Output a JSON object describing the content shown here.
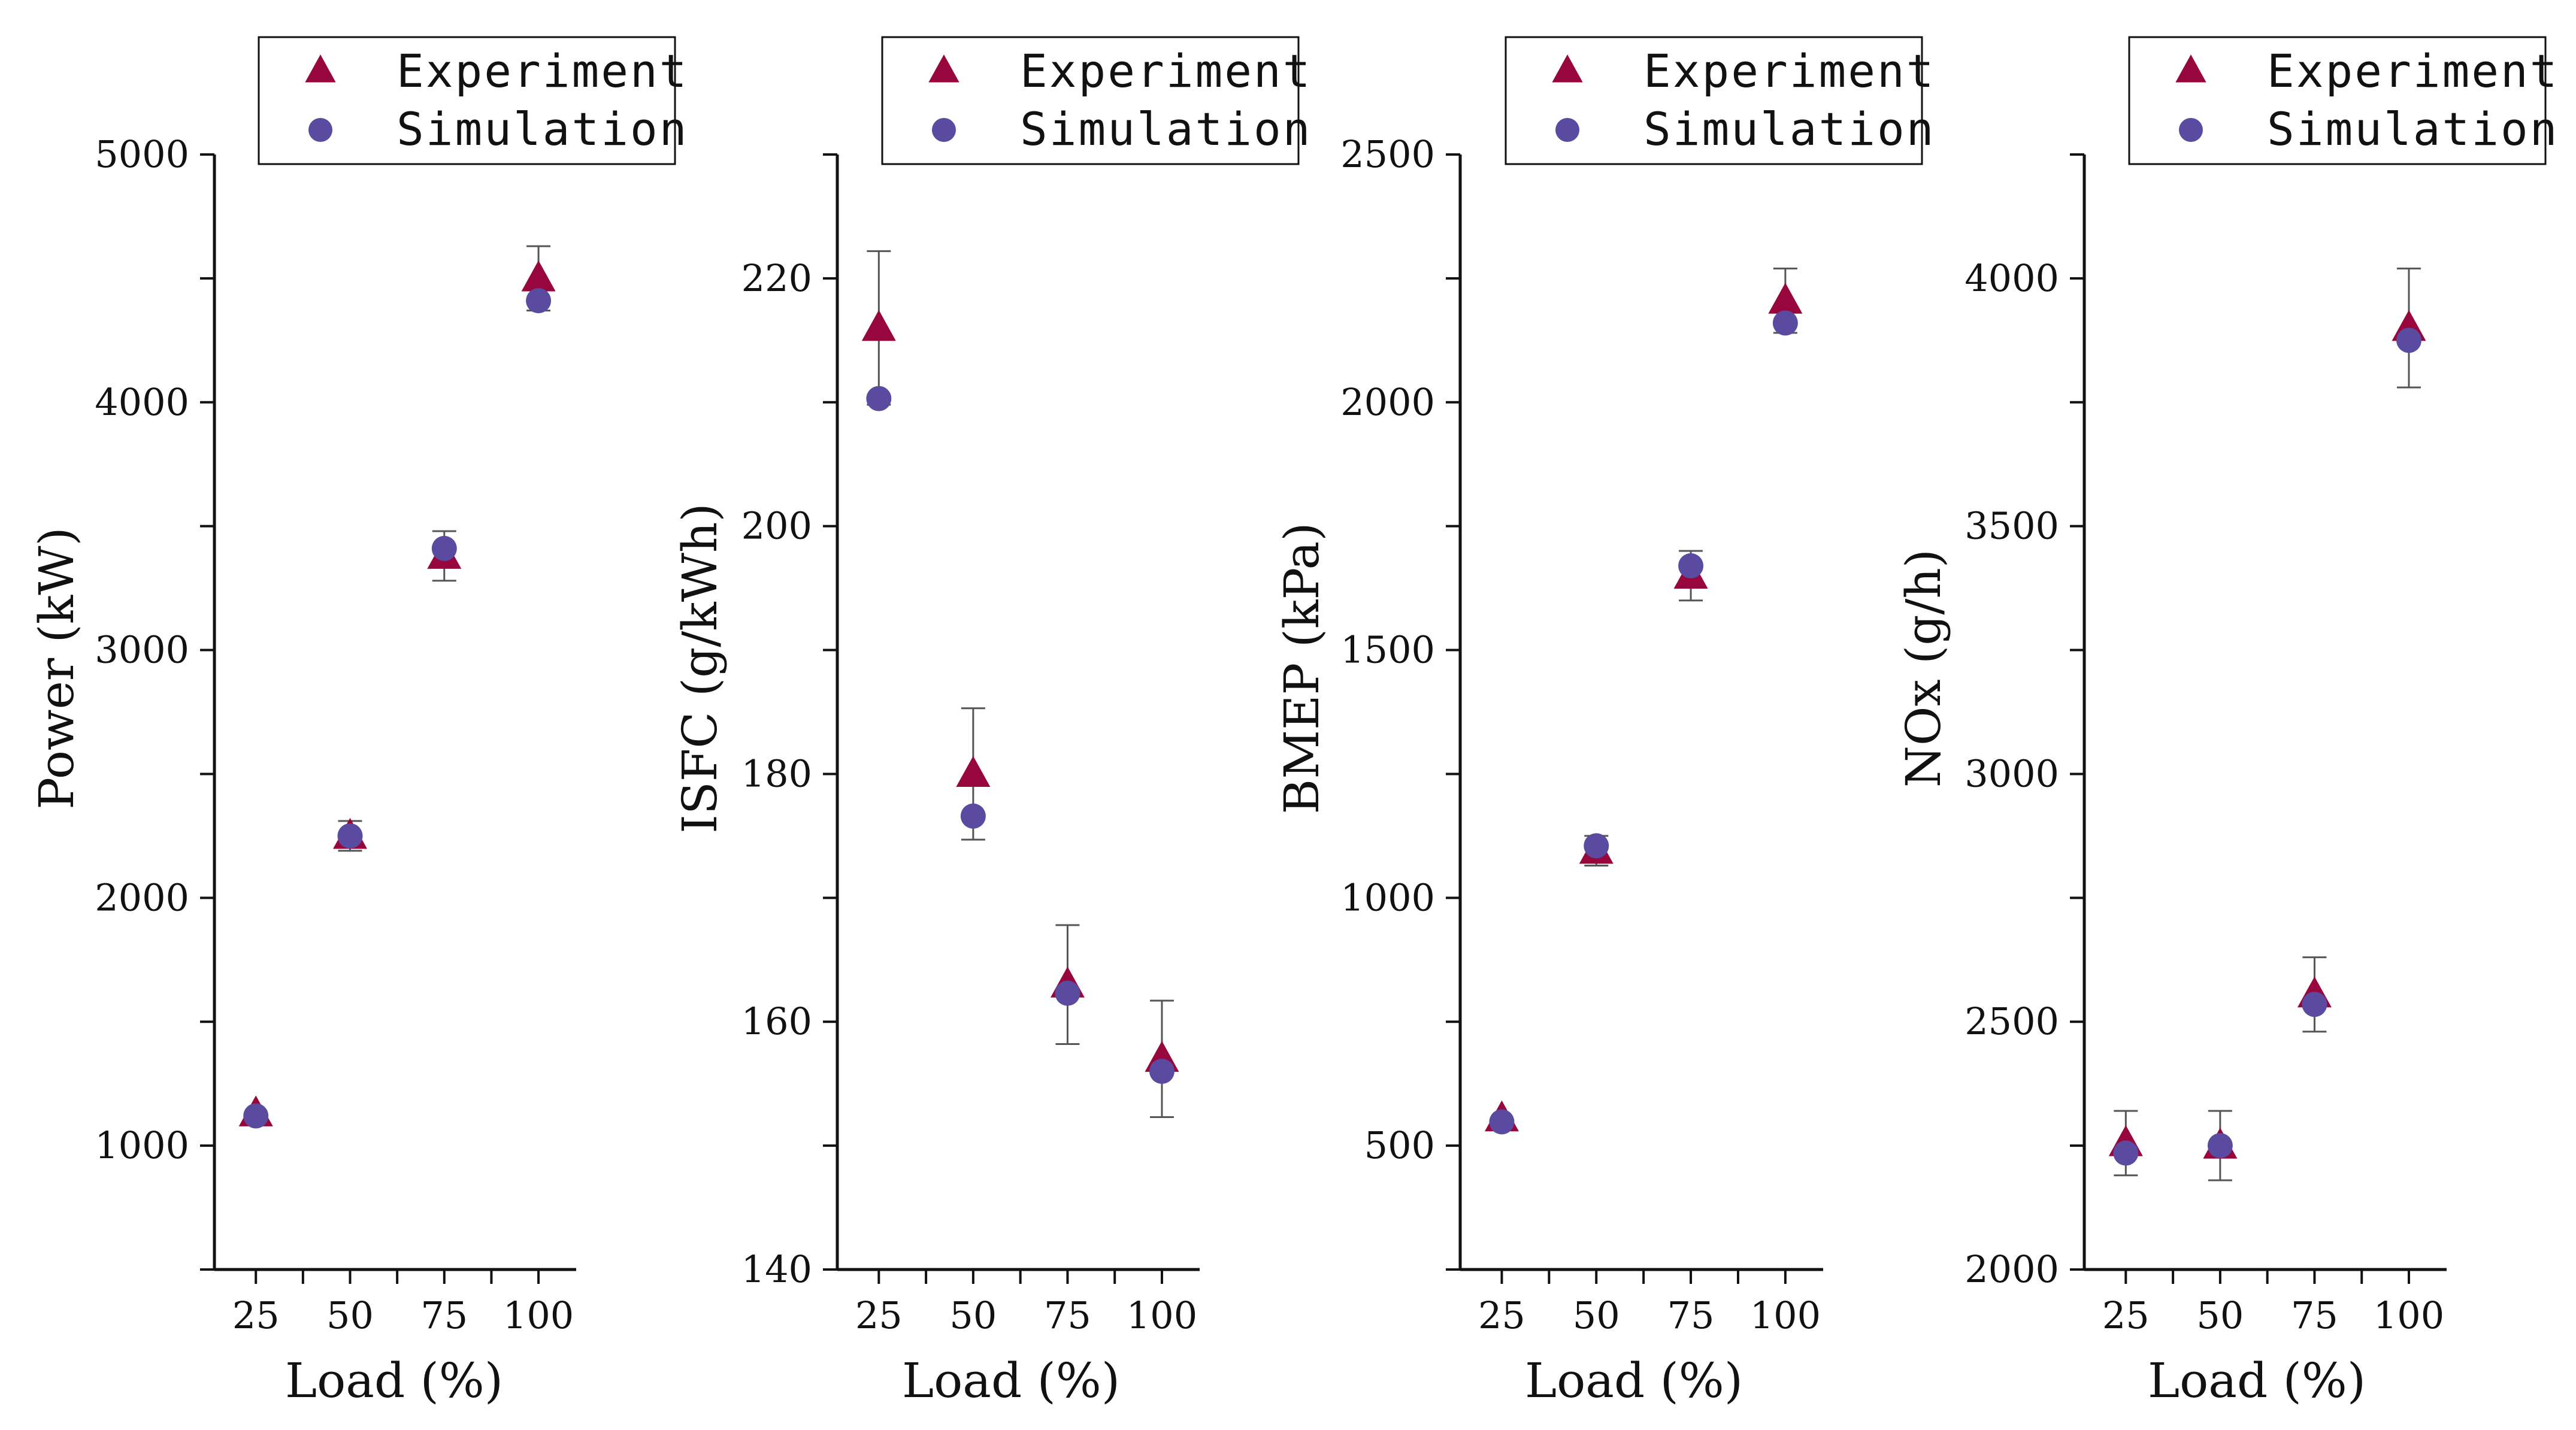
{
  "colors": {
    "experiment": "#98063e",
    "simulation": "#5a4aa0",
    "axis": "#111111",
    "errorbar": "#555555"
  },
  "legend": {
    "experiment_label": "Experiment",
    "simulation_label": "Simulation"
  },
  "chart_data": [
    {
      "type": "scatter",
      "title": "",
      "xlabel": "Load (%)",
      "ylabel": "Power (kW)",
      "categories": [
        "25",
        "50",
        "75",
        "100"
      ],
      "x": [
        25,
        50,
        75,
        100
      ],
      "xlim": [
        14,
        110
      ],
      "ylim": [
        500,
        5000
      ],
      "yticks": [
        1000,
        2000,
        3000,
        4000,
        5000
      ],
      "ytick_labels": [
        "1000",
        "2000",
        "3000",
        "4000",
        "5000"
      ],
      "legend_position": "top-right",
      "series": [
        {
          "name": "Experiment",
          "marker": "triangle",
          "values": [
            1130,
            2250,
            3380,
            4500
          ],
          "error": [
            0,
            60,
            100,
            130
          ]
        },
        {
          "name": "Simulation",
          "marker": "circle",
          "values": [
            1120,
            2250,
            3410,
            4410
          ],
          "error": [
            0,
            0,
            0,
            0
          ]
        }
      ]
    },
    {
      "type": "scatter",
      "title": "",
      "xlabel": "Load (%)",
      "ylabel": "ISFC (g/kWh)",
      "categories": [
        "25",
        "50",
        "75",
        "100"
      ],
      "x": [
        25,
        50,
        75,
        100
      ],
      "xlim": [
        14,
        110
      ],
      "ylim": [
        140,
        230
      ],
      "yticks": [
        140,
        160,
        180,
        200,
        220
      ],
      "ytick_labels": [
        "140",
        "160",
        "180",
        "200",
        "220"
      ],
      "legend_position": "top-right",
      "series": [
        {
          "name": "Experiment",
          "marker": "triangle",
          "values": [
            216,
            180,
            163,
            157
          ],
          "error": [
            6.2,
            5.3,
            4.8,
            4.7
          ]
        },
        {
          "name": "Simulation",
          "marker": "circle",
          "values": [
            210.3,
            176.6,
            162.3,
            156
          ],
          "error": [
            0,
            0,
            0,
            0
          ]
        }
      ]
    },
    {
      "type": "scatter",
      "title": "",
      "xlabel": "Load (%)",
      "ylabel": "BMEP (kPa)",
      "categories": [
        "25",
        "50",
        "75",
        "100"
      ],
      "x": [
        25,
        50,
        75,
        100
      ],
      "xlim": [
        14,
        110
      ],
      "ylim": [
        250,
        2500
      ],
      "yticks": [
        500,
        1000,
        1500,
        2000,
        2500
      ],
      "ytick_labels": [
        "500",
        "1000",
        "1500",
        "2000",
        "2500"
      ],
      "legend_position": "top-right",
      "series": [
        {
          "name": "Experiment",
          "marker": "triangle",
          "values": [
            555,
            1095,
            1650,
            2205
          ],
          "error": [
            0,
            30,
            50,
            65
          ]
        },
        {
          "name": "Simulation",
          "marker": "circle",
          "values": [
            548,
            1105,
            1670,
            2160
          ],
          "error": [
            0,
            0,
            0,
            0
          ]
        }
      ]
    },
    {
      "type": "scatter",
      "title": "",
      "xlabel": "Load (%)",
      "ylabel": "NOx (g/h)",
      "categories": [
        "25",
        "50",
        "75",
        "100"
      ],
      "x": [
        25,
        50,
        75,
        100
      ],
      "xlim": [
        14,
        110
      ],
      "ylim": [
        2000,
        4250
      ],
      "yticks": [
        2000,
        2500,
        3000,
        3500,
        4000
      ],
      "ytick_labels": [
        "2000",
        "2500",
        "3000",
        "3500",
        "4000"
      ],
      "legend_position": "top-right",
      "series": [
        {
          "name": "Experiment",
          "marker": "triangle",
          "values": [
            2255,
            2250,
            2555,
            3900
          ],
          "error": [
            65,
            70,
            75,
            120
          ]
        },
        {
          "name": "Simulation",
          "marker": "circle",
          "values": [
            2235,
            2250,
            2535,
            3875
          ],
          "error": [
            0,
            0,
            0,
            0
          ]
        }
      ]
    }
  ]
}
